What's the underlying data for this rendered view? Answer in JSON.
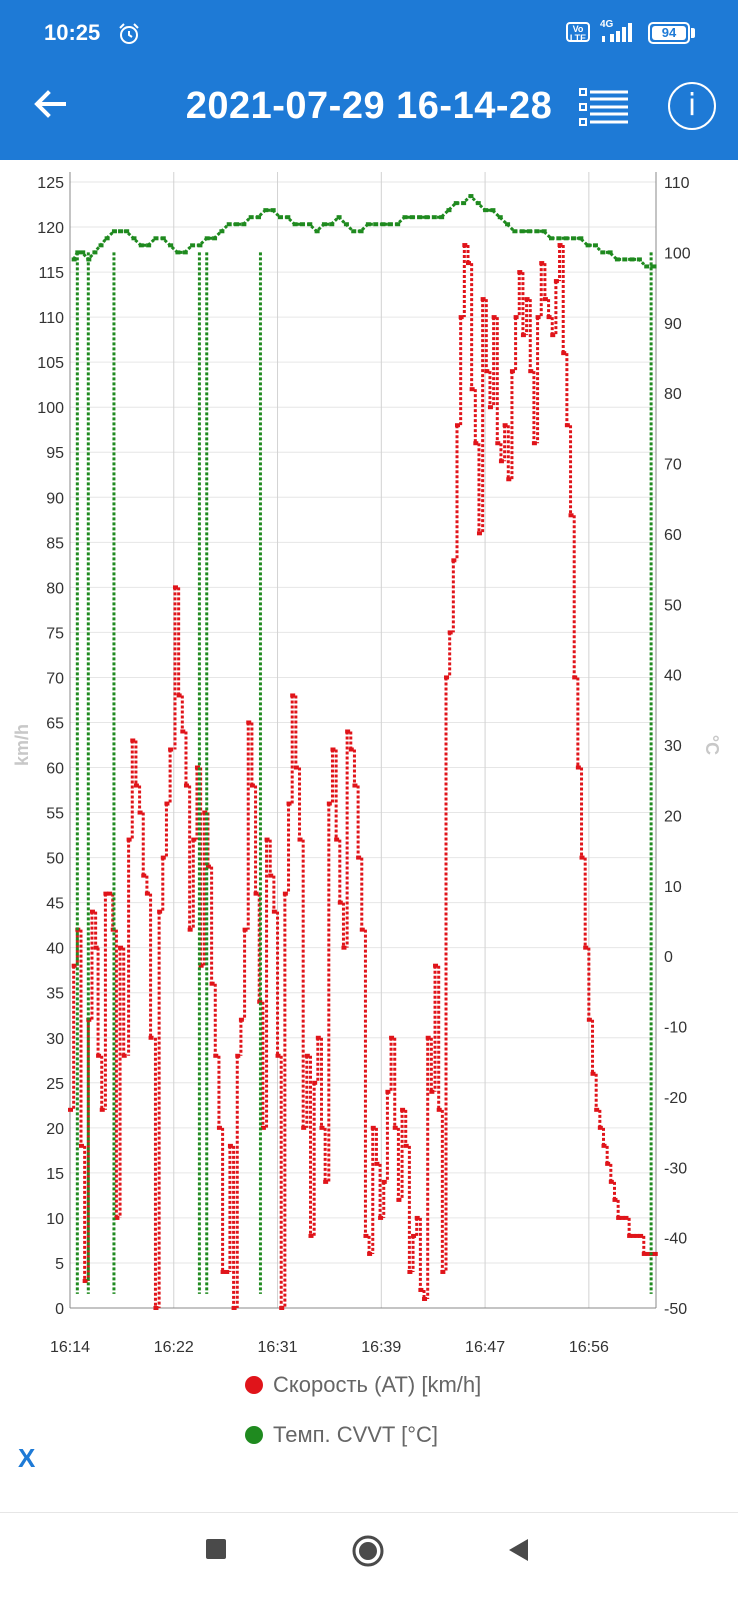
{
  "status_bar": {
    "time": "10:25",
    "volte": "Vo LTE",
    "network": "4G",
    "battery": "94"
  },
  "header": {
    "title": "2021-07-29 16-14-28",
    "back_icon": "back-arrow-icon",
    "list_icon": "list-icon",
    "info_icon": "info-icon",
    "info_glyph": "i"
  },
  "colors": {
    "accent": "#1e7ad6",
    "speed": "#e0141a",
    "temp": "#1f8a1f"
  },
  "controls": {
    "x_label": "X"
  },
  "chart_data": {
    "type": "scatter",
    "x_ticks": [
      "16:14",
      "16:22",
      "16:31",
      "16:39",
      "16:47",
      "16:56"
    ],
    "ylabel_left": "km/h",
    "ylabel_right": "°C",
    "ylim_left": [
      0,
      125
    ],
    "ylim_right": [
      -50,
      110
    ],
    "y_ticks_left": [
      0,
      5,
      10,
      15,
      20,
      25,
      30,
      35,
      40,
      45,
      50,
      55,
      60,
      65,
      70,
      75,
      80,
      85,
      90,
      95,
      100,
      105,
      110,
      115,
      120,
      125
    ],
    "y_ticks_right": [
      -50,
      -40,
      -30,
      -20,
      -10,
      0,
      10,
      20,
      30,
      40,
      50,
      60,
      70,
      80,
      90,
      100,
      110
    ],
    "grid": true,
    "legend_placement": "bottom",
    "series": [
      {
        "name": "Скорость (AT) [km/h]",
        "axis": "left",
        "color": "#e0141a",
        "x_minutes": [
          0,
          0.3,
          0.6,
          0.9,
          1.2,
          1.5,
          1.8,
          2.1,
          2.3,
          2.6,
          2.9,
          3.2,
          3.5,
          3.8,
          4.1,
          4.4,
          4.8,
          5.1,
          5.4,
          5.7,
          6.0,
          6.3,
          6.6,
          7.0,
          7.3,
          7.6,
          7.9,
          8.2,
          8.6,
          8.9,
          9.2,
          9.5,
          9.8,
          10.1,
          10.4,
          10.7,
          11.0,
          11.3,
          11.6,
          11.9,
          12.2,
          12.5,
          12.8,
          13.1,
          13.4,
          13.7,
          14.0,
          14.3,
          14.6,
          14.9,
          15.2,
          15.5,
          15.8,
          16.1,
          16.4,
          16.7,
          17.0,
          17.3,
          17.6,
          17.9,
          18.2,
          18.5,
          18.8,
          19.1,
          19.4,
          19.7,
          20.0,
          20.3,
          20.6,
          20.9,
          21.2,
          21.5,
          21.8,
          22.1,
          22.4,
          22.7,
          23.0,
          23.3,
          23.6,
          23.9,
          24.2,
          24.5,
          24.8,
          25.1,
          25.4,
          25.7,
          26.0,
          26.3,
          26.6,
          26.9,
          27.2,
          27.5,
          27.8,
          28.1,
          28.4,
          28.7,
          29.0,
          29.3,
          29.6,
          29.9,
          30.2,
          30.5,
          30.8,
          31.1,
          31.4,
          31.7,
          32.0,
          32.3,
          32.6,
          32.9,
          33.2,
          33.5,
          33.8,
          34.1,
          34.4,
          34.7,
          35.0,
          35.3,
          35.6,
          35.9,
          36.2,
          36.5,
          36.8,
          37.1,
          37.4,
          37.7,
          38.0,
          38.3,
          38.6,
          38.9,
          39.2,
          39.5,
          39.8,
          40.1,
          40.4,
          40.7,
          41.0,
          41.3,
          41.6,
          41.9,
          42.2,
          42.5,
          42.8,
          43.1,
          43.4,
          43.7,
          44.0,
          44.3,
          44.6,
          44.9,
          45.2,
          45.5,
          45.8,
          46.1,
          46.4,
          46.7,
          47.0,
          47.3,
          47.6,
          47.9
        ],
        "values": [
          22,
          38,
          42,
          18,
          3,
          32,
          44,
          40,
          28,
          22,
          46,
          46,
          42,
          10,
          40,
          28,
          52,
          63,
          58,
          55,
          48,
          46,
          30,
          0,
          44,
          50,
          56,
          62,
          80,
          68,
          64,
          58,
          42,
          52,
          60,
          38,
          55,
          49,
          36,
          28,
          20,
          4,
          4,
          18,
          0,
          28,
          32,
          42,
          65,
          58,
          46,
          34,
          20,
          52,
          48,
          44,
          28,
          0,
          46,
          56,
          68,
          60,
          52,
          20,
          28,
          8,
          25,
          30,
          20,
          14,
          56,
          62,
          52,
          45,
          40,
          64,
          62,
          58,
          50,
          42,
          8,
          6,
          20,
          16,
          10,
          14,
          24,
          30,
          20,
          12,
          22,
          18,
          4,
          8,
          10,
          2,
          1,
          30,
          24,
          38,
          22,
          4,
          70,
          75,
          83,
          98,
          110,
          118,
          116,
          102,
          96,
          86,
          112,
          104,
          100,
          110,
          96,
          94,
          98,
          92,
          104,
          110,
          115,
          108,
          112,
          104,
          96,
          110,
          116,
          112,
          110,
          108,
          114,
          118,
          106,
          98,
          88,
          70,
          60,
          50,
          40,
          32,
          26,
          22,
          20,
          18,
          16,
          14,
          12,
          10,
          10,
          10,
          8,
          8,
          8,
          8,
          6,
          6,
          6,
          6
        ],
        "note": ""
      },
      {
        "name": "Темп. CVVT [°C]",
        "axis": "right",
        "color": "#1f8a1f",
        "x_minutes": [
          0.3,
          0.6,
          1.0,
          1.5,
          2.0,
          2.5,
          3.0,
          3.6,
          4.1,
          4.6,
          5.2,
          5.8,
          6.4,
          7.0,
          7.6,
          8.2,
          8.8,
          9.4,
          10.0,
          10.6,
          11.2,
          11.8,
          12.4,
          13.0,
          13.6,
          14.2,
          14.8,
          15.4,
          16.0,
          16.6,
          17.2,
          17.8,
          18.4,
          19.0,
          19.6,
          20.2,
          20.8,
          21.4,
          22.0,
          22.6,
          23.2,
          23.8,
          24.4,
          25.0,
          25.6,
          26.2,
          26.8,
          27.4,
          28.0,
          28.6,
          29.2,
          29.8,
          30.4,
          31.0,
          31.6,
          32.2,
          32.8,
          33.4,
          34.0,
          34.6,
          35.2,
          35.8,
          36.4,
          37.0,
          37.6,
          38.2,
          38.8,
          39.4,
          40.0,
          40.6,
          41.2,
          41.8,
          42.4,
          43.0,
          43.6,
          44.2,
          44.8,
          45.4,
          46.0,
          46.6,
          47.2,
          47.8
        ],
        "values": [
          99,
          100,
          100,
          99,
          100,
          101,
          102,
          103,
          103,
          103,
          102,
          101,
          101,
          102,
          102,
          101,
          100,
          100,
          101,
          101,
          102,
          102,
          103,
          104,
          104,
          104,
          105,
          105,
          106,
          106,
          105,
          105,
          104,
          104,
          104,
          103,
          104,
          104,
          105,
          104,
          103,
          103,
          104,
          104,
          104,
          104,
          104,
          105,
          105,
          105,
          105,
          105,
          105,
          106,
          107,
          107,
          108,
          107,
          106,
          106,
          105,
          104,
          103,
          103,
          103,
          103,
          103,
          102,
          102,
          102,
          102,
          102,
          101,
          101,
          100,
          100,
          99,
          99,
          99,
          99,
          98,
          98
        ]
      }
    ]
  }
}
